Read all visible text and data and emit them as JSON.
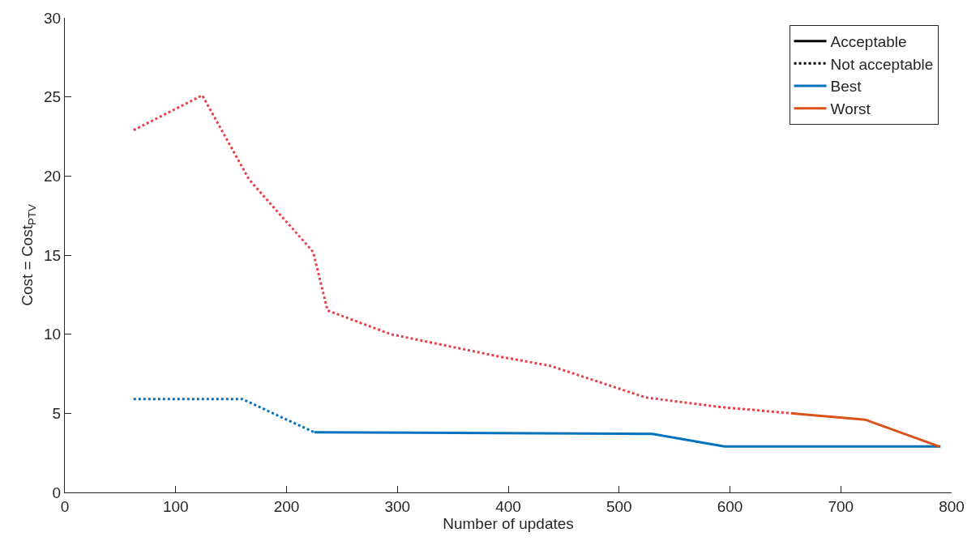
{
  "chart_data": {
    "type": "line",
    "xlabel": "Number of updates",
    "ylabel": "Cost = Cost$_{PTV}$",
    "xlim": [
      0,
      800
    ],
    "xticks": [
      0,
      100,
      200,
      300,
      400,
      500,
      600,
      700,
      800
    ],
    "ylim": [
      0,
      30
    ],
    "yticks": [
      0,
      5,
      10,
      15,
      20,
      25,
      30
    ],
    "legend": "top right",
    "marker": "none",
    "series": [
      {
        "name": "Acceptable",
        "color": "#000000",
        "line_style": "solid"
      },
      {
        "name": "Not acceptable",
        "color": "#000000",
        "line_style": "dotted"
      },
      {
        "name": "Best",
        "color": "#0072bd",
        "line_style": "solid",
        "x": [
          225,
          530,
          595,
          790
        ],
        "values": [
          3.8,
          3.7,
          2.9,
          2.9
        ]
      },
      {
        "name": "Worst",
        "color": "#d95319",
        "line_style": "solid",
        "x": [
          655,
          722,
          789
        ],
        "values": [
          5.0,
          4.6,
          2.9
        ]
      },
      {
        "color": "#0072bd",
        "line_style": "dotted",
        "x": [
          62,
          160,
          225
        ],
        "values": [
          5.9,
          5.9,
          3.8
        ]
      },
      {
        "color": "#e8404a",
        "line_style": "dotted",
        "x": [
          62,
          124,
          166,
          224,
          237,
          294,
          391,
          438,
          524,
          591,
          655
        ],
        "values": [
          22.9,
          25.1,
          19.8,
          15.2,
          11.5,
          10.0,
          8.6,
          8.0,
          6.0,
          5.4,
          5.0
        ]
      }
    ]
  }
}
